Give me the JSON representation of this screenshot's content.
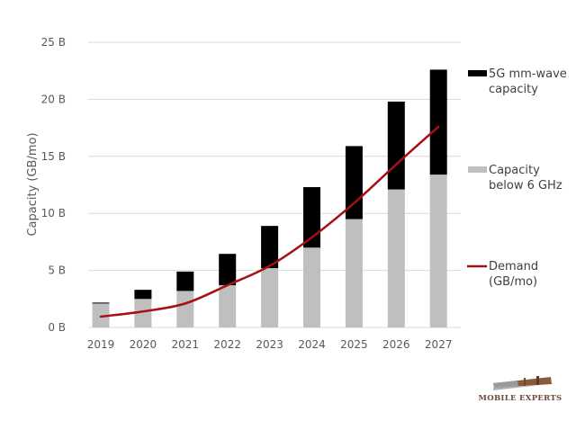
{
  "chart_data": {
    "type": "bar",
    "stacked": true,
    "title": "",
    "xlabel": "",
    "ylabel": "Capacity (GB/mo)",
    "ylim": [
      0,
      25
    ],
    "yticks": [
      0,
      5,
      10,
      15,
      20,
      25
    ],
    "ytick_labels": [
      "0 B",
      "5 B",
      "10 B",
      "15 B",
      "20 B",
      "25 B"
    ],
    "grid": true,
    "legend_position": "right",
    "categories": [
      "2019",
      "2020",
      "2021",
      "2022",
      "2023",
      "2024",
      "2025",
      "2026",
      "2027"
    ],
    "series": [
      {
        "name": "Capacity below 6 GHz",
        "type": "bar",
        "color": "#bfbfbf",
        "values": [
          2.1,
          2.5,
          3.2,
          3.7,
          5.2,
          7.0,
          9.5,
          12.1,
          13.4
        ]
      },
      {
        "name": "5G mm-wave capacity",
        "type": "bar",
        "color": "#000000",
        "values": [
          0.05,
          0.8,
          1.7,
          2.75,
          3.7,
          5.3,
          6.4,
          7.7,
          9.2
        ]
      },
      {
        "name": "Demand (GB/mo)",
        "type": "line",
        "color": "#a50f15",
        "values": [
          0.95,
          1.4,
          2.1,
          3.7,
          5.4,
          7.9,
          10.9,
          14.3,
          17.6
        ]
      }
    ],
    "legend": [
      {
        "label_lines": [
          "5G mm-wave",
          "capacity"
        ],
        "swatch": "bar",
        "color": "#000000"
      },
      {
        "label_lines": [
          "Capacity",
          "below 6 GHz"
        ],
        "swatch": "bar",
        "color": "#bfbfbf"
      },
      {
        "label_lines": [
          "Demand",
          "(GB/mo)"
        ],
        "swatch": "line",
        "color": "#a50f15"
      }
    ]
  },
  "logo": {
    "text": "MOBILE EXPERTS"
  }
}
